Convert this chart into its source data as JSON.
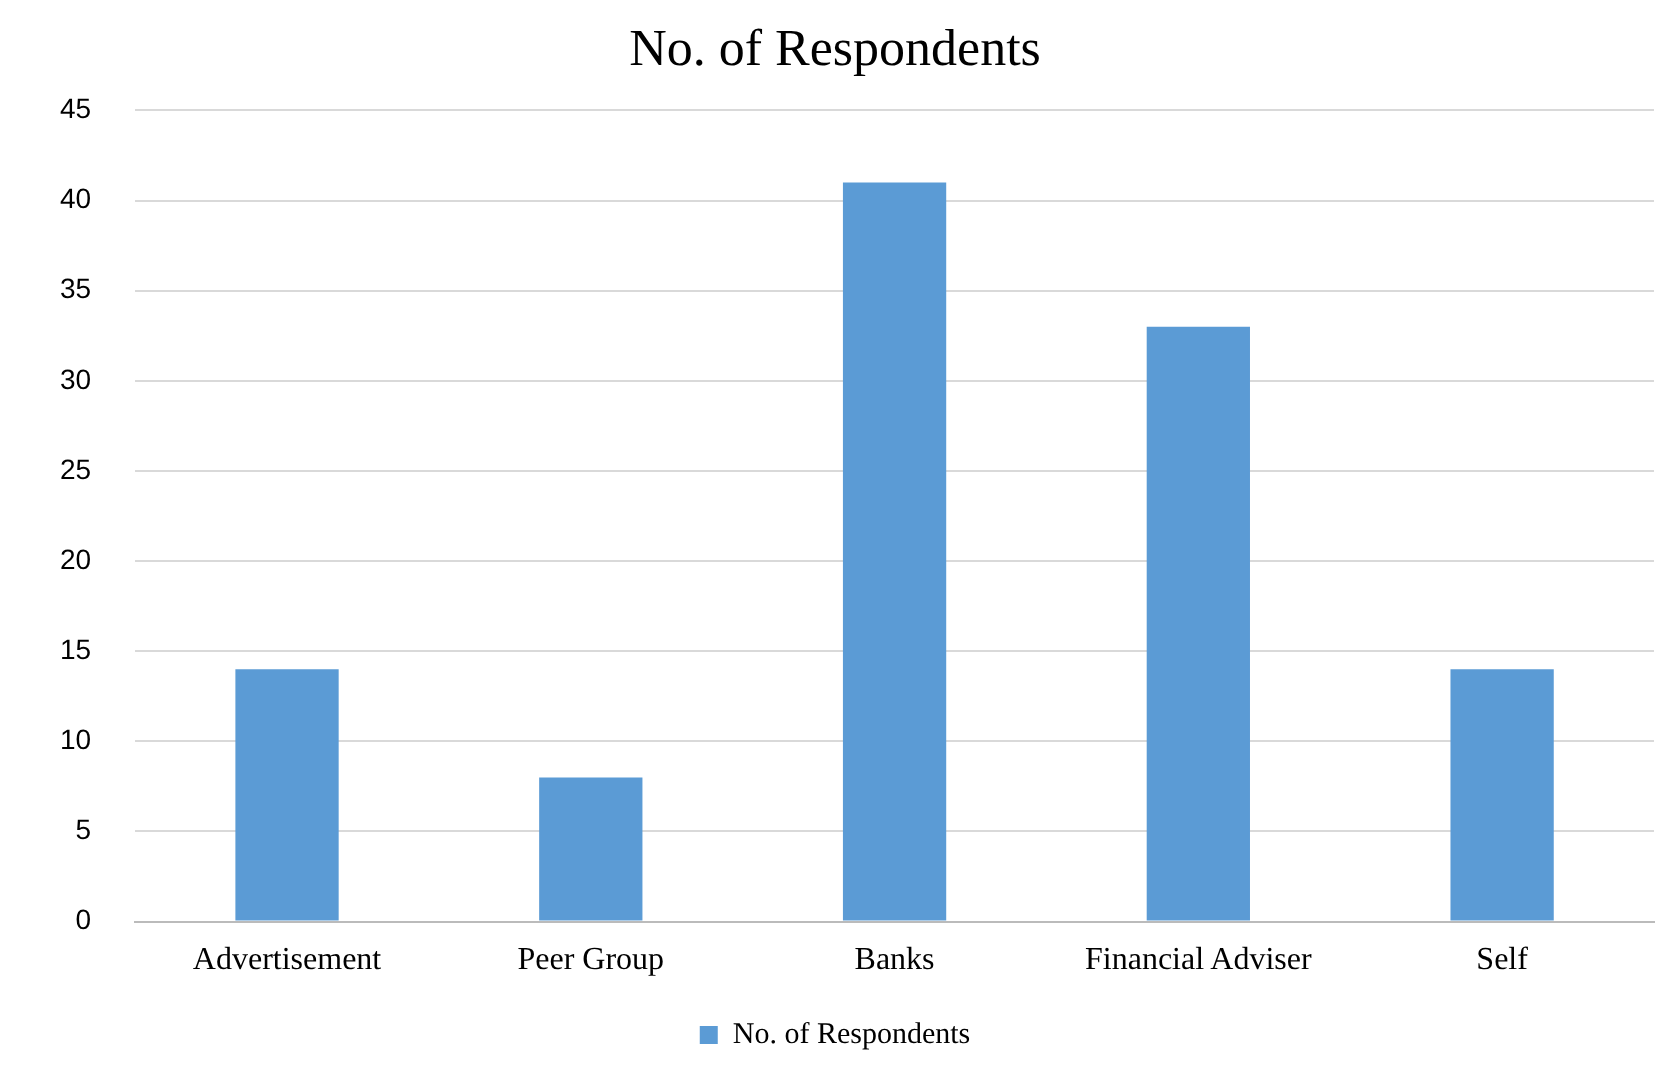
{
  "chart_data": {
    "type": "bar",
    "title": "No. of Respondents",
    "categories": [
      "Advertisement",
      "Peer Group",
      "Banks",
      "Financial Adviser",
      "Self"
    ],
    "series": [
      {
        "name": "No. of Respondents",
        "color": "#5b9bd5",
        "values": [
          14,
          8,
          41,
          33,
          14
        ]
      }
    ],
    "ylim": [
      0,
      45
    ],
    "yticks": [
      0,
      5,
      10,
      15,
      20,
      25,
      30,
      35,
      40,
      45
    ],
    "grid": "y",
    "legend": "bottom"
  }
}
